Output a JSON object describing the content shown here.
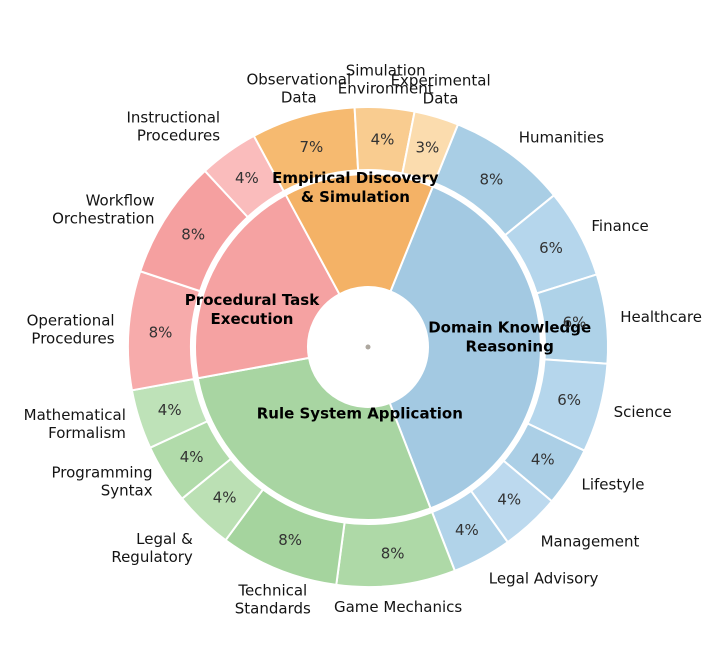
{
  "figure": {
    "background": "#ffffff",
    "description_unit": "%"
  },
  "chart_data": {
    "type": "pie",
    "subtype": "sunburst",
    "unit": "%",
    "start_angle_deg": 22,
    "ring_gap_color": "#ffffff",
    "categories": [
      {
        "name": "Domain Knowledge Reasoning",
        "label_lines": [
          "Domain Knowledge",
          "Reasoning"
        ],
        "color": "#a3c9e2",
        "label_angle_deg": 86,
        "label_radius": 142,
        "total": 38,
        "children": [
          {
            "name": "Humanities",
            "value": 8,
            "color": "#a9cee5",
            "label_lines": [
              "Humanities"
            ]
          },
          {
            "name": "Finance",
            "value": 6,
            "color": "#b5d6ec",
            "label_lines": [
              "Finance"
            ]
          },
          {
            "name": "Healthcare",
            "value": 6,
            "color": "#aed2e8",
            "label_lines": [
              "Healthcare"
            ]
          },
          {
            "name": "Science",
            "value": 6,
            "color": "#b5d6ec",
            "label_lines": [
              "Science"
            ]
          },
          {
            "name": "Lifestyle",
            "value": 4,
            "color": "#abcfe6",
            "label_lines": [
              "Lifestyle"
            ]
          },
          {
            "name": "Management",
            "value": 4,
            "color": "#bcd9ee",
            "label_lines": [
              "Management"
            ]
          },
          {
            "name": "Legal Advisory",
            "value": 4,
            "color": "#b1d3e9",
            "label_lines": [
              "Legal Advisory"
            ]
          }
        ]
      },
      {
        "name": "Rule System Application",
        "label_lines": [
          "Rule System Application"
        ],
        "color": "#a8d5a2",
        "label_angle_deg": 187,
        "label_radius": 67,
        "total": 28,
        "children": [
          {
            "name": "Game Mechanics",
            "value": 8,
            "color": "#aed9a7",
            "label_lines": [
              "Game Mechanics"
            ]
          },
          {
            "name": "Technical Standards",
            "value": 8,
            "color": "#a5d49e",
            "label_lines": [
              "Technical",
              "Standards"
            ]
          },
          {
            "name": "Legal & Regulatory",
            "value": 4,
            "color": "#bbe0b4",
            "label_lines": [
              "Legal &",
              "Regulatory"
            ]
          },
          {
            "name": "Programming Syntax",
            "value": 4,
            "color": "#b1dbaa",
            "label_lines": [
              "Programming",
              "Syntax"
            ]
          },
          {
            "name": "Mathematical Formalism",
            "value": 4,
            "color": "#bee2b8",
            "label_lines": [
              "Mathematical",
              "Formalism"
            ]
          }
        ]
      },
      {
        "name": "Procedural Task Execution",
        "label_lines": [
          "Procedural Task",
          "Execution"
        ],
        "color": "#f5a2a2",
        "label_angle_deg": 288,
        "label_radius": 122,
        "total": 20,
        "children": [
          {
            "name": "Operational Procedures",
            "value": 8,
            "color": "#f7abab",
            "label_lines": [
              "Operational",
              "Procedures"
            ]
          },
          {
            "name": "Workflow Orchestration",
            "value": 8,
            "color": "#f5a0a0",
            "label_lines": [
              "Workflow",
              "Orchestration"
            ]
          },
          {
            "name": "Instructional Procedures",
            "value": 4,
            "color": "#fabcbc",
            "label_lines": [
              "Instructional",
              "Procedures"
            ]
          }
        ]
      },
      {
        "name": "Empirical Discovery & Simulation",
        "label_lines": [
          "Empirical Discovery",
          "& Simulation"
        ],
        "color": "#f4b266",
        "label_angle_deg": 355.5,
        "label_radius": 160,
        "total": 14,
        "children": [
          {
            "name": "Observational Data",
            "value": 7,
            "color": "#f6ba70",
            "label_lines": [
              "Observational",
              "Data"
            ]
          },
          {
            "name": "Simulation Environment",
            "value": 4,
            "color": "#f9cc90",
            "label_lines": [
              "Simulation",
              "Environment"
            ]
          },
          {
            "name": "Experimental Data",
            "value": 3,
            "color": "#fbdcae",
            "label_lines": [
              "Experimental",
              "Data"
            ]
          }
        ]
      }
    ]
  }
}
